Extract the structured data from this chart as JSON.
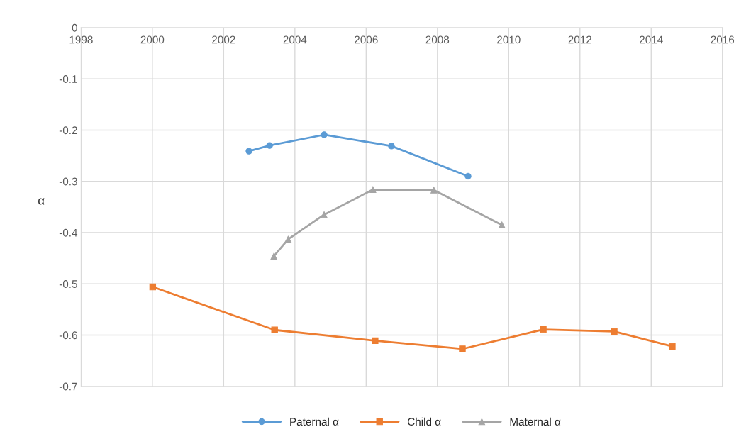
{
  "chart_data": {
    "type": "line",
    "ylabel": "α",
    "series": [
      {
        "name": "Paternal α",
        "color": "#5b9bd5",
        "marker": "circle",
        "x": [
          2002.71,
          2003.29,
          2004.82,
          2006.71,
          2008.86
        ],
        "values": [
          -0.241,
          -0.23,
          -0.209,
          -0.231,
          -0.29
        ]
      },
      {
        "name": "Child α",
        "color": "#ed7d31",
        "marker": "square",
        "x": [
          2000.01,
          2003.43,
          2006.25,
          2008.7,
          2010.97,
          2012.96,
          2014.59
        ],
        "values": [
          -0.506,
          -0.59,
          -0.611,
          -0.627,
          -0.589,
          -0.593,
          -0.622
        ]
      },
      {
        "name": "Maternal α",
        "color": "#a5a5a5",
        "marker": "triangle",
        "x": [
          2003.41,
          2003.81,
          2004.82,
          2006.19,
          2007.9,
          2009.81
        ],
        "values": [
          -0.446,
          -0.413,
          -0.365,
          -0.316,
          -0.317,
          -0.385
        ]
      }
    ],
    "xlim": [
      1998,
      2016
    ],
    "xticks": [
      1998,
      2000,
      2002,
      2004,
      2006,
      2008,
      2010,
      2012,
      2014,
      2016
    ],
    "ylim": [
      -0.7,
      0
    ],
    "yticks": [
      -0.7,
      -0.6,
      -0.5,
      -0.4,
      -0.3,
      -0.2,
      -0.1,
      0
    ],
    "grid": true,
    "legend": "bottom",
    "line_style": "solid"
  }
}
